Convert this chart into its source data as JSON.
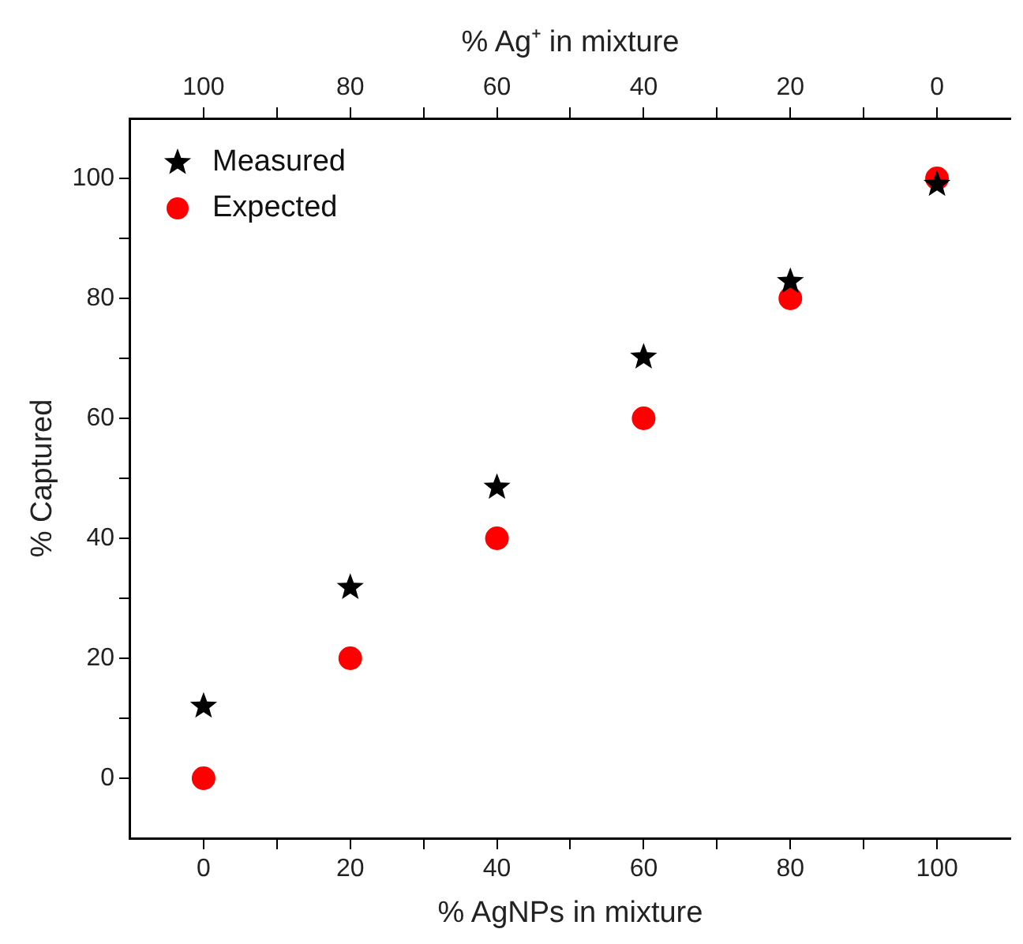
{
  "chart_data": {
    "type": "scatter",
    "xlabel": "% AgNPs in mixture",
    "ylabel": "% Captured",
    "x2label": "% Ag⁺ in mixture",
    "x": [
      0,
      20,
      40,
      60,
      80,
      100
    ],
    "series": [
      {
        "name": "Measured",
        "color": "#000000",
        "marker": "star",
        "values": [
          12,
          31.8,
          48.5,
          70.2,
          82.8,
          99
        ]
      },
      {
        "name": "Expected",
        "color": "#ff0000",
        "marker": "circle",
        "values": [
          0,
          20,
          40,
          60,
          80,
          100
        ]
      }
    ],
    "xlim": [
      -10,
      110
    ],
    "ylim": [
      -10,
      110
    ],
    "x2lim": [
      110,
      -10
    ],
    "xticks": [
      0,
      {
        "value": 10,
        "label": null
      },
      20,
      {
        "value": 30,
        "label": null
      },
      40,
      {
        "value": 50,
        "label": null
      },
      60,
      {
        "value": 70,
        "label": null
      },
      80,
      {
        "value": 90,
        "label": null
      },
      100
    ],
    "x2ticks": [
      0,
      {
        "value": 10,
        "label": null
      },
      20,
      {
        "value": 30,
        "label": null
      },
      40,
      {
        "value": 50,
        "label": null
      },
      60,
      {
        "value": 70,
        "label": null
      },
      80,
      {
        "value": 90,
        "label": null
      },
      100
    ],
    "yticks": [
      0,
      {
        "value": 10,
        "label": null
      },
      20,
      {
        "value": 30,
        "label": null
      },
      40,
      {
        "value": 50,
        "label": null
      },
      60,
      {
        "value": 70,
        "label": null
      },
      80,
      {
        "value": 90,
        "label": null
      },
      100
    ],
    "grid": false,
    "legend": "top left"
  }
}
